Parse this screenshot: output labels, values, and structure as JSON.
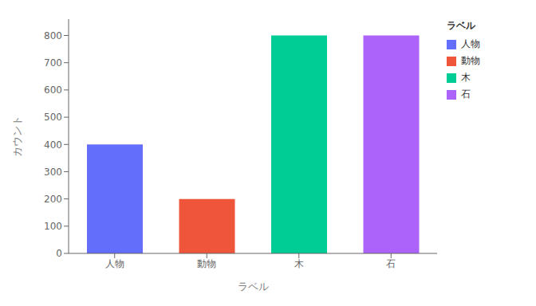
{
  "chart_data": {
    "type": "bar",
    "categories": [
      "人物",
      "動物",
      "木",
      "石"
    ],
    "values": [
      400,
      200,
      800,
      800
    ],
    "colors": [
      "#636efa",
      "#ef553b",
      "#00cc96",
      "#ab63fa"
    ],
    "xlabel": "ラベル",
    "ylabel": "カウント",
    "legend_title": "ラベル",
    "legend": "right",
    "ylim": [
      0,
      860
    ],
    "yticks": [
      0,
      100,
      200,
      300,
      400,
      500,
      600,
      700,
      800
    ],
    "grid": false
  }
}
